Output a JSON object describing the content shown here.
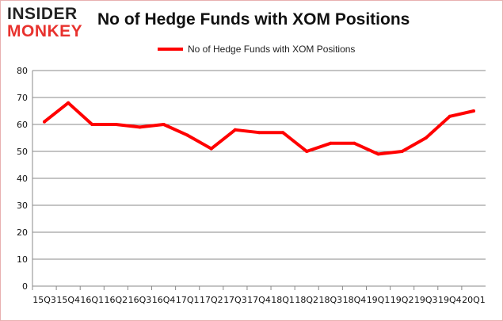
{
  "logo": {
    "line1": "INSIDER",
    "line2": "MONKEY"
  },
  "chart_data": {
    "type": "line",
    "title": "No of Hedge Funds with XOM Positions",
    "xlabel": "",
    "ylabel": "",
    "categories": [
      "15Q3",
      "15Q4",
      "16Q1",
      "16Q2",
      "16Q3",
      "16Q4",
      "17Q1",
      "17Q2",
      "17Q3",
      "17Q4",
      "18Q1",
      "18Q2",
      "18Q3",
      "18Q4",
      "19Q1",
      "19Q2",
      "19Q3",
      "19Q4",
      "20Q1"
    ],
    "series": [
      {
        "name": "No of Hedge Funds with XOM Positions",
        "color": "#ff0000",
        "values": [
          61,
          68,
          60,
          60,
          59,
          60,
          56,
          51,
          58,
          57,
          57,
          50,
          53,
          53,
          49,
          50,
          55,
          63,
          65
        ]
      }
    ],
    "ylim": [
      0,
      80
    ],
    "yticks": [
      0,
      10,
      20,
      30,
      40,
      50,
      60,
      70,
      80
    ],
    "grid": true,
    "legend": "top-center"
  }
}
